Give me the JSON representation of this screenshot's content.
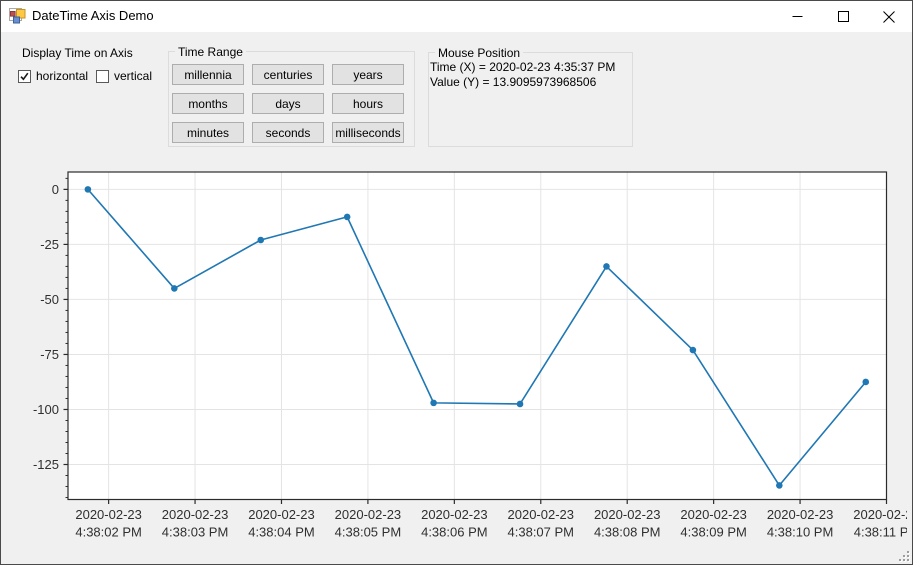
{
  "window": {
    "title": "DateTime Axis Demo",
    "controls": {
      "minimize": "minimize",
      "maximize": "maximize",
      "close": "close"
    }
  },
  "display_time": {
    "label": "Display Time on Axis",
    "checkboxes": [
      {
        "label": "horizontal",
        "checked": true
      },
      {
        "label": "vertical",
        "checked": false
      }
    ]
  },
  "time_range": {
    "label": "Time Range",
    "buttons": [
      "millennia",
      "centuries",
      "years",
      "months",
      "days",
      "hours",
      "minutes",
      "seconds",
      "milliseconds"
    ]
  },
  "mouse_position": {
    "label": "Mouse Position",
    "lines": [
      "Time (X) = 2020-02-23 4:35:37 PM",
      "Value (Y) = 13.9095973968506"
    ]
  },
  "chart_data": {
    "type": "line",
    "title": "",
    "xlabel": "",
    "ylabel": "",
    "x_unit": "seconds after 2020-02-23 4:38:00 PM",
    "series": [
      {
        "name": "values",
        "color": "#1f77b4",
        "x_seconds": [
          1.76,
          2.76,
          3.76,
          4.76,
          5.76,
          6.76,
          7.76,
          8.76,
          9.76,
          10.76
        ],
        "values": [
          0,
          -45,
          -23,
          -12.5,
          -97,
          -97.5,
          -35,
          -73,
          -134.5,
          -87.5
        ]
      }
    ],
    "x_ticks": [
      {
        "s": 2,
        "line1": "2020-02-23",
        "line2": "4:38:02 PM"
      },
      {
        "s": 3,
        "line1": "2020-02-23",
        "line2": "4:38:03 PM"
      },
      {
        "s": 4,
        "line1": "2020-02-23",
        "line2": "4:38:04 PM"
      },
      {
        "s": 5,
        "line1": "2020-02-23",
        "line2": "4:38:05 PM"
      },
      {
        "s": 6,
        "line1": "2020-02-23",
        "line2": "4:38:06 PM"
      },
      {
        "s": 7,
        "line1": "2020-02-23",
        "line2": "4:38:07 PM"
      },
      {
        "s": 8,
        "line1": "2020-02-23",
        "line2": "4:38:08 PM"
      },
      {
        "s": 9,
        "line1": "2020-02-23",
        "line2": "4:38:09 PM"
      },
      {
        "s": 10,
        "line1": "2020-02-23",
        "line2": "4:38:10 PM"
      },
      {
        "s": 11,
        "line1": "2020-02-23",
        "line2": "4:38:11 PM"
      }
    ],
    "y_ticks": [
      0,
      -25,
      -50,
      -75,
      -100,
      -125
    ],
    "y_minor_tick_step": 5,
    "xlim_seconds": [
      1.53,
      11.0
    ],
    "ylim": [
      -140.9,
      7.9
    ],
    "grid": true,
    "legend": "none",
    "plot_background": "#ffffff",
    "grid_color": "#e4e4e4",
    "frame_color": "#2b2b2b",
    "tick_label_color": "#2f2f2f"
  }
}
